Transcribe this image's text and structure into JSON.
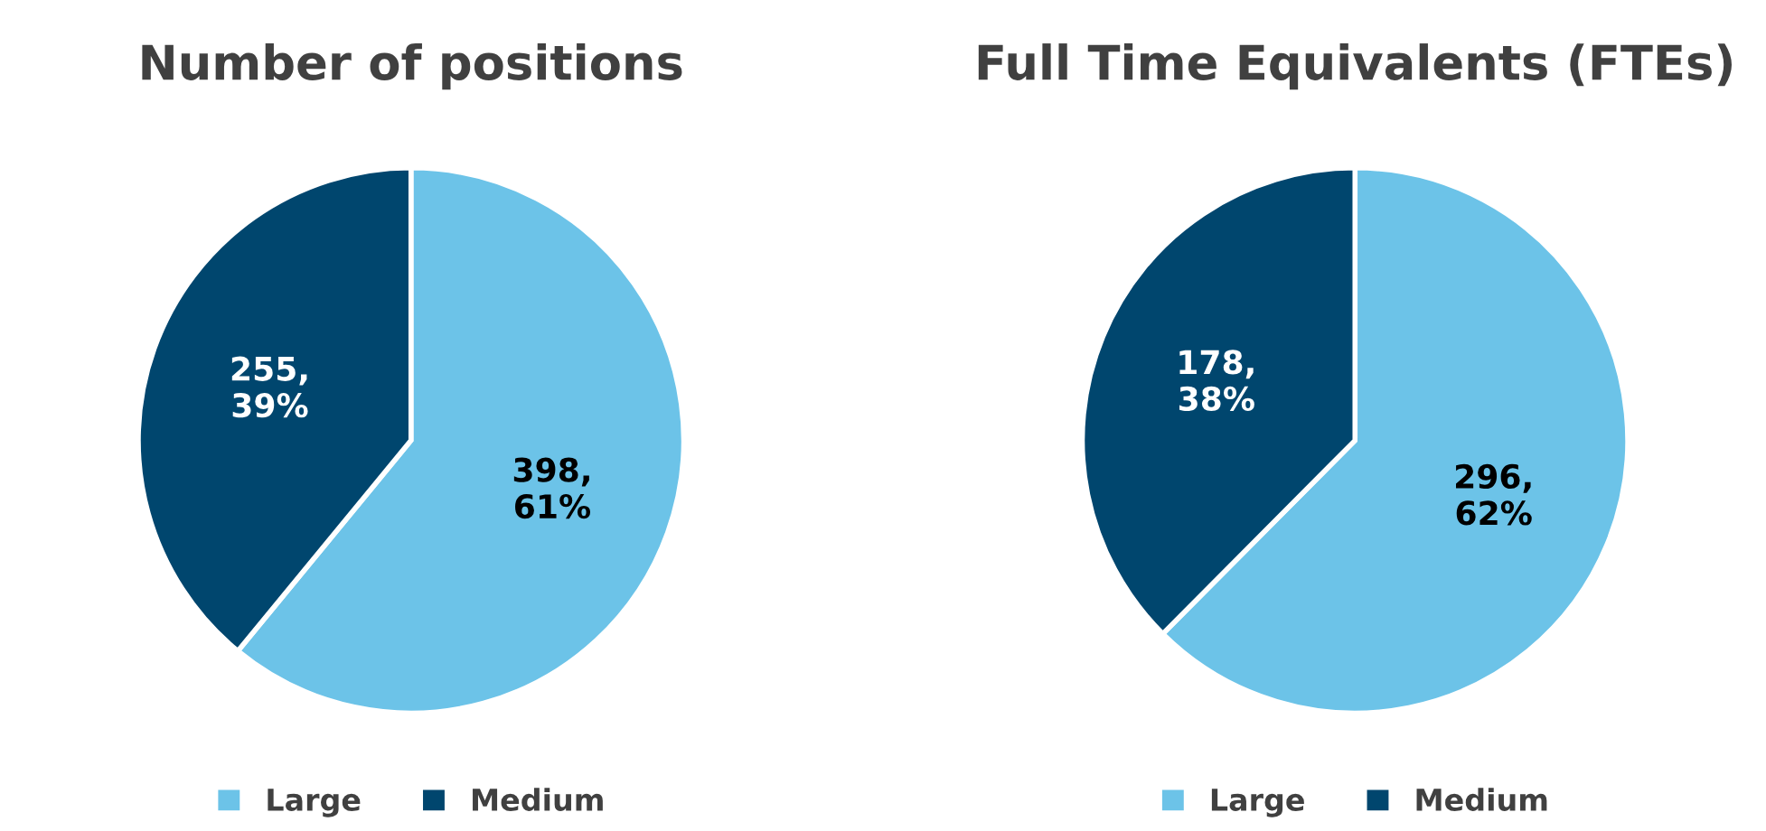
{
  "chart_data": [
    {
      "type": "pie",
      "title": "Number of positions",
      "categories": [
        "Large",
        "Medium"
      ],
      "values": [
        398,
        255
      ],
      "colors": [
        "#6cc3e8",
        "#00466e"
      ],
      "value_labels": [
        "398,\n61%",
        "255,\n39%"
      ],
      "legend": "bottom"
    },
    {
      "type": "pie",
      "title": "Full Time Equivalents (FTEs)",
      "categories": [
        "Large",
        "Medium"
      ],
      "values": [
        296,
        178
      ],
      "colors": [
        "#6cc3e8",
        "#00466e"
      ],
      "value_labels": [
        "296,\n62%",
        "178,\n38%"
      ],
      "legend": "bottom"
    }
  ]
}
